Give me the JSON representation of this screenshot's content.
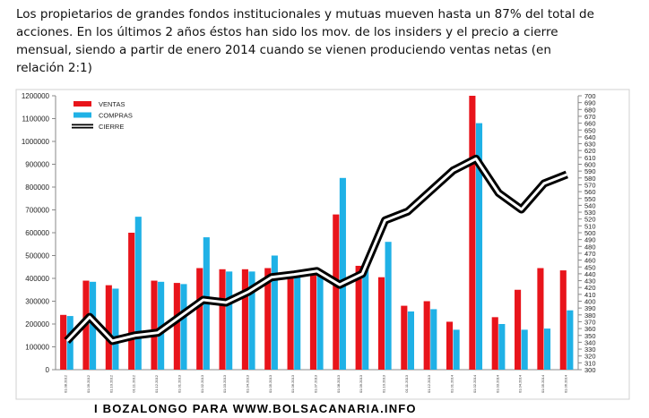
{
  "header": {
    "lines": [
      "Los  propietarios de grandes fondos institucionales y mutuas mueven hasta un 87% del total de",
      "acciones. En los últimos 2 años éstos han sido los mov. de los insiders y el precio a cierre",
      "mensual, siendo a partir de enero 2014 cuando se vienen produciendo ventas netas (en",
      "relación 2:1)"
    ]
  },
  "chart_data": {
    "type": "bar_line",
    "categories": [
      "01.08.2012",
      "01.09.2012",
      "01.10.2012",
      "01.11.2012",
      "01.12.2012",
      "01.01.2013",
      "01.02.2013",
      "01.03.2013",
      "01.04.2013",
      "01.05.2013",
      "01.06.2013",
      "01.07.2013",
      "01.08.2013",
      "01.09.2013",
      "01.10.2013",
      "01.11.2013",
      "01.12.2013",
      "01.01.2014",
      "01.02.2014",
      "01.03.2014",
      "01.04.2014",
      "01.05.2014",
      "01.06.2014"
    ],
    "series": [
      {
        "name": "VENTAS",
        "color": "#e8141b",
        "values": [
          240000,
          390000,
          370000,
          600000,
          390000,
          380000,
          445000,
          440000,
          440000,
          445000,
          420000,
          420000,
          680000,
          455000,
          405000,
          280000,
          300000,
          210000,
          1200000,
          230000,
          350000,
          445000,
          435000
        ]
      },
      {
        "name": "COMPRAS",
        "color": "#1fb1e6",
        "values": [
          235000,
          385000,
          355000,
          670000,
          385000,
          375000,
          580000,
          430000,
          430000,
          500000,
          420000,
          420000,
          840000,
          445000,
          560000,
          255000,
          265000,
          175000,
          1080000,
          200000,
          175000,
          180000,
          260000
        ]
      },
      {
        "name": "CIERRE",
        "color": "#000000",
        "axis": "y2",
        "values": [
          342,
          377,
          342,
          350,
          354,
          378,
          402,
          398,
          414,
          435,
          439,
          444,
          424,
          440,
          518,
          531,
          561,
          591,
          608,
          558,
          534,
          572,
          585
        ]
      }
    ],
    "ylim": [
      0,
      1200000
    ],
    "yticks": [
      0,
      100000,
      200000,
      300000,
      400000,
      500000,
      600000,
      700000,
      800000,
      900000,
      1000000,
      1100000,
      1200000
    ],
    "y2lim": [
      300,
      700
    ],
    "y2ticks": [
      300,
      310,
      320,
      330,
      340,
      350,
      360,
      370,
      380,
      390,
      400,
      410,
      420,
      430,
      440,
      450,
      460,
      470,
      480,
      490,
      500,
      510,
      520,
      530,
      540,
      550,
      560,
      570,
      580,
      590,
      600,
      610,
      620,
      630,
      640,
      650,
      660,
      670,
      680,
      690,
      700
    ],
    "legend": "top-left"
  },
  "footer": {
    "text": "I BOZALONGO PARA WWW.BOLSACANARIA.INFO"
  }
}
